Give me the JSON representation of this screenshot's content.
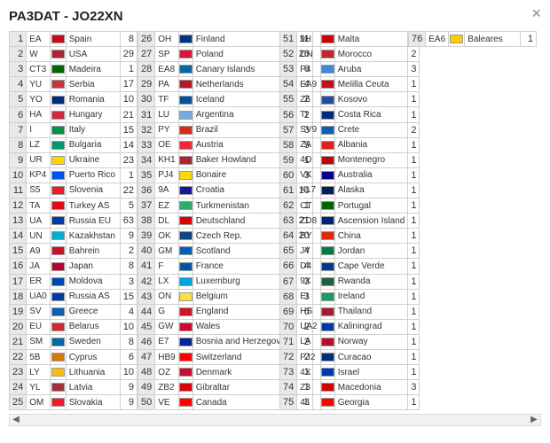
{
  "title": "PA3DAT - JO22XN",
  "flag_colors": {
    "EA": "#c60b1e",
    "W": "#b22234",
    "CT3": "#006600",
    "YU": "#c6363c",
    "YO": "#002b7f",
    "HA": "#cd2a3e",
    "I": "#009246",
    "LZ": "#00966e",
    "UR": "#ffd500",
    "KP4": "#0050f0",
    "S5": "#ed1c24",
    "TA": "#e30a17",
    "UA": "#0039a6",
    "UN": "#00afca",
    "A9": "#ce1126",
    "JA": "#bc002d",
    "ER": "#0046ae",
    "UA0": "#0039a6",
    "SV": "#0d5eaf",
    "EU": "#d22730",
    "SM": "#006aa7",
    "5B": "#d57800",
    "LY": "#fdb913",
    "YL": "#9e3039",
    "OM": "#ee1c25",
    "OH": "#003580",
    "SP": "#dc143c",
    "EA8": "#0768a9",
    "PA": "#ae1c28",
    "TF": "#02529c",
    "LU": "#74acdf",
    "PY": "#d52b1e",
    "OE": "#ed2939",
    "KH1": "#b22234",
    "PJ4": "#f9d90f",
    "9A": "#171796",
    "EZ": "#28ae66",
    "DL": "#dd0000",
    "OK": "#11457e",
    "GM": "#005eb8",
    "F": "#0055a4",
    "LX": "#00a1de",
    "ON": "#fae042",
    "G": "#cf142b",
    "GW": "#d30731",
    "E7": "#002395",
    "HB9": "#ff0000",
    "OZ": "#c60c30",
    "ZB2": "#da000c",
    "VE": "#ff0000",
    "9H": "#ce0000",
    "CN": "#c1272d",
    "P4": "#4189dd",
    "EA9": "#c60b1e",
    "Z6": "#244aa5",
    "TI": "#002b7f",
    "SV9": "#0d5eaf",
    "ZA": "#e41e20",
    "4O": "#c40308",
    "VK": "#00008b",
    "KL7": "#00205b",
    "CT": "#006600",
    "ZD8": "#00247d",
    "BY": "#de2910",
    "JY": "#007a3d",
    "D4": "#003893",
    "9X": "#20603d",
    "EI": "#169b62",
    "HS": "#a51931",
    "UA2": "#0039a6",
    "LA": "#ba0c2f",
    "PJ2": "#002b7f",
    "4X": "#0038b8",
    "Z3": "#d20000",
    "4L": "#ff0000",
    "EA6": "#ffcc00"
  },
  "columns": [
    [
      {
        "r": 1,
        "p": "EA",
        "n": "Spain",
        "c": 8
      },
      {
        "r": 2,
        "p": "W",
        "n": "USA",
        "c": 29
      },
      {
        "r": 3,
        "p": "CT3",
        "n": "Madeira",
        "c": 1
      },
      {
        "r": 4,
        "p": "YU",
        "n": "Serbia",
        "c": 17
      },
      {
        "r": 5,
        "p": "YO",
        "n": "Romania",
        "c": 10
      },
      {
        "r": 6,
        "p": "HA",
        "n": "Hungary",
        "c": 21
      },
      {
        "r": 7,
        "p": "I",
        "n": "Italy",
        "c": 15
      },
      {
        "r": 8,
        "p": "LZ",
        "n": "Bulgaria",
        "c": 14
      },
      {
        "r": 9,
        "p": "UR",
        "n": "Ukraine",
        "c": 23
      },
      {
        "r": 10,
        "p": "KP4",
        "n": "Puerto Rico",
        "c": 1
      },
      {
        "r": 11,
        "p": "S5",
        "n": "Slovenia",
        "c": 22
      },
      {
        "r": 12,
        "p": "TA",
        "n": "Turkey AS",
        "c": 5
      },
      {
        "r": 13,
        "p": "UA",
        "n": "Russia EU",
        "c": 63
      },
      {
        "r": 14,
        "p": "UN",
        "n": "Kazakhstan",
        "c": 9
      },
      {
        "r": 15,
        "p": "A9",
        "n": "Bahrein",
        "c": 2
      },
      {
        "r": 16,
        "p": "JA",
        "n": "Japan",
        "c": 8
      },
      {
        "r": 17,
        "p": "ER",
        "n": "Moldova",
        "c": 3
      },
      {
        "r": 18,
        "p": "UA0",
        "n": "Russia AS",
        "c": 15
      },
      {
        "r": 19,
        "p": "SV",
        "n": "Greece",
        "c": 4
      },
      {
        "r": 20,
        "p": "EU",
        "n": "Belarus",
        "c": 10
      },
      {
        "r": 21,
        "p": "SM",
        "n": "Sweden",
        "c": 8
      },
      {
        "r": 22,
        "p": "5B",
        "n": "Cyprus",
        "c": 6
      },
      {
        "r": 23,
        "p": "LY",
        "n": "Lithuania",
        "c": 10
      },
      {
        "r": 24,
        "p": "YL",
        "n": "Latvia",
        "c": 9
      },
      {
        "r": 25,
        "p": "OM",
        "n": "Slovakia",
        "c": 9
      }
    ],
    [
      {
        "r": 26,
        "p": "OH",
        "n": "Finland",
        "c": 11
      },
      {
        "r": 27,
        "p": "SP",
        "n": "Poland",
        "c": 26
      },
      {
        "r": 28,
        "p": "EA8",
        "n": "Canary Islands",
        "c": 6
      },
      {
        "r": 29,
        "p": "PA",
        "n": "Netherlands",
        "c": 4
      },
      {
        "r": 30,
        "p": "TF",
        "n": "Iceland",
        "c": 2
      },
      {
        "r": 31,
        "p": "LU",
        "n": "Argentina",
        "c": 2
      },
      {
        "r": 32,
        "p": "PY",
        "n": "Brazil",
        "c": 3
      },
      {
        "r": 33,
        "p": "OE",
        "n": "Austria",
        "c": 5
      },
      {
        "r": 34,
        "p": "KH1",
        "n": "Baker Howland",
        "c": 1
      },
      {
        "r": 35,
        "p": "PJ4",
        "n": "Bonaire",
        "c": 3
      },
      {
        "r": 36,
        "p": "9A",
        "n": "Croatia",
        "c": 10
      },
      {
        "r": 37,
        "p": "EZ",
        "n": "Turkmenistan",
        "c": 1
      },
      {
        "r": 38,
        "p": "DL",
        "n": "Deutschland",
        "c": 21
      },
      {
        "r": 39,
        "p": "OK",
        "n": "Czech Rep.",
        "c": 20
      },
      {
        "r": 40,
        "p": "GM",
        "n": "Scotland",
        "c": 4
      },
      {
        "r": 41,
        "p": "F",
        "n": "France",
        "c": 4
      },
      {
        "r": 42,
        "p": "LX",
        "n": "Luxemburg",
        "c": 3
      },
      {
        "r": 43,
        "p": "ON",
        "n": "Belgium",
        "c": 3
      },
      {
        "r": 44,
        "p": "G",
        "n": "England",
        "c": 6
      },
      {
        "r": 45,
        "p": "GW",
        "n": "Wales",
        "c": 2
      },
      {
        "r": 46,
        "p": "E7",
        "n": "Bosnia and Herzegovina",
        "c": 2
      },
      {
        "r": 47,
        "p": "HB9",
        "n": "Switzerland",
        "c": 2
      },
      {
        "r": 48,
        "p": "OZ",
        "n": "Denmark",
        "c": 1
      },
      {
        "r": 49,
        "p": "ZB2",
        "n": "Gibraltar",
        "c": 1
      },
      {
        "r": 50,
        "p": "VE",
        "n": "Canada",
        "c": 3
      }
    ],
    [
      {
        "r": 51,
        "p": "9H",
        "n": "Malta",
        "c": 2
      },
      {
        "r": 52,
        "p": "CN",
        "n": "Morocco",
        "c": 2
      },
      {
        "r": 53,
        "p": "P4",
        "n": "Aruba",
        "c": 3
      },
      {
        "r": 54,
        "p": "EA9",
        "n": "Melilla Ceuta",
        "c": 1
      },
      {
        "r": 55,
        "p": "Z6",
        "n": "Kosovo",
        "c": 1
      },
      {
        "r": 56,
        "p": "TI",
        "n": "Costa Rica",
        "c": 1
      },
      {
        "r": 57,
        "p": "SV9",
        "n": "Crete",
        "c": 2
      },
      {
        "r": 58,
        "p": "ZA",
        "n": "Albania",
        "c": 1
      },
      {
        "r": 59,
        "p": "4O",
        "n": "Montenegro",
        "c": 1
      },
      {
        "r": 60,
        "p": "VK",
        "n": "Australia",
        "c": 1
      },
      {
        "r": 61,
        "p": "KL7",
        "n": "Alaska",
        "c": 1
      },
      {
        "r": 62,
        "p": "CT",
        "n": "Portugal",
        "c": 1
      },
      {
        "r": 63,
        "p": "ZD8",
        "n": "Ascension Island",
        "c": 1
      },
      {
        "r": 64,
        "p": "BY",
        "n": "China",
        "c": 1
      },
      {
        "r": 65,
        "p": "JY",
        "n": "Jordan",
        "c": 1
      },
      {
        "r": 66,
        "p": "D4",
        "n": "Cape Verde",
        "c": 1
      },
      {
        "r": 67,
        "p": "9X",
        "n": "Rwanda",
        "c": 1
      },
      {
        "r": 68,
        "p": "EI",
        "n": "Ireland",
        "c": 1
      },
      {
        "r": 69,
        "p": "HS",
        "n": "Thailand",
        "c": 1
      },
      {
        "r": 70,
        "p": "UA2",
        "n": "Kaliningrad",
        "c": 1
      },
      {
        "r": 71,
        "p": "LA",
        "n": "Norway",
        "c": 1
      },
      {
        "r": 72,
        "p": "PJ2",
        "n": "Curacao",
        "c": 1
      },
      {
        "r": 73,
        "p": "4X",
        "n": "Israel",
        "c": 1
      },
      {
        "r": 74,
        "p": "Z3",
        "n": "Macedonia",
        "c": 3
      },
      {
        "r": 75,
        "p": "4L",
        "n": "Georgia",
        "c": 1
      }
    ],
    [
      {
        "r": 76,
        "p": "EA6",
        "n": "Baleares",
        "c": 1
      }
    ]
  ]
}
